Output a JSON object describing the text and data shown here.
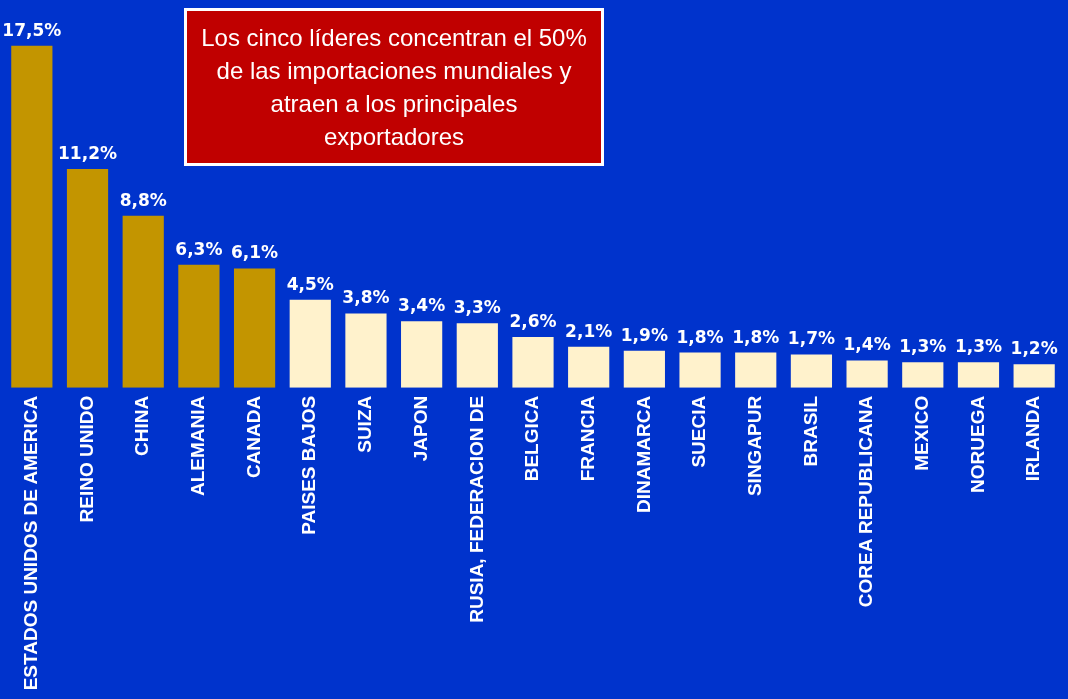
{
  "chart_data": {
    "type": "bar",
    "categories": [
      "ESTADOS UNIDOS DE AMERICA",
      "REINO UNIDO",
      "CHINA",
      "ALEMANIA",
      "CANADA",
      "PAISES BAJOS",
      "SUIZA",
      "JAPON",
      "RUSIA, FEDERACION DE",
      "BELGICA",
      "FRANCIA",
      "DINAMARCA",
      "SUECIA",
      "SINGAPUR",
      "BRASIL",
      "COREA REPUBLICANA",
      "MEXICO",
      "NORUEGA",
      "IRLANDA"
    ],
    "values": [
      17.5,
      11.2,
      8.8,
      6.3,
      6.1,
      4.5,
      3.8,
      3.4,
      3.3,
      2.6,
      2.1,
      1.9,
      1.8,
      1.8,
      1.7,
      1.4,
      1.3,
      1.3,
      1.2
    ],
    "colors": [
      "#c39500",
      "#c39500",
      "#c39500",
      "#c39500",
      "#c39500",
      "#fff2cc",
      "#fff2cc",
      "#fff2cc",
      "#fff2cc",
      "#fff2cc",
      "#fff2cc",
      "#fff2cc",
      "#fff2cc",
      "#fff2cc",
      "#fff2cc",
      "#fff2cc",
      "#fff2cc",
      "#fff2cc",
      "#fff2cc"
    ],
    "value_labels": [
      "17,5%",
      "11,2%",
      "8,8%",
      "6,3%",
      "6,1%",
      "4,5%",
      "3,8%",
      "3,4%",
      "3,3%",
      "2,6%",
      "2,1%",
      "1,9%",
      "1,8%",
      "1,8%",
      "1,7%",
      "1,4%",
      "1,3%",
      "1,3%",
      "1,2%"
    ],
    "annotations": [
      "Los cinco líderes concentran el 50% de las importaciones mundiales y atraen a los principales exportadores"
    ],
    "grid": false,
    "legend": false
  }
}
